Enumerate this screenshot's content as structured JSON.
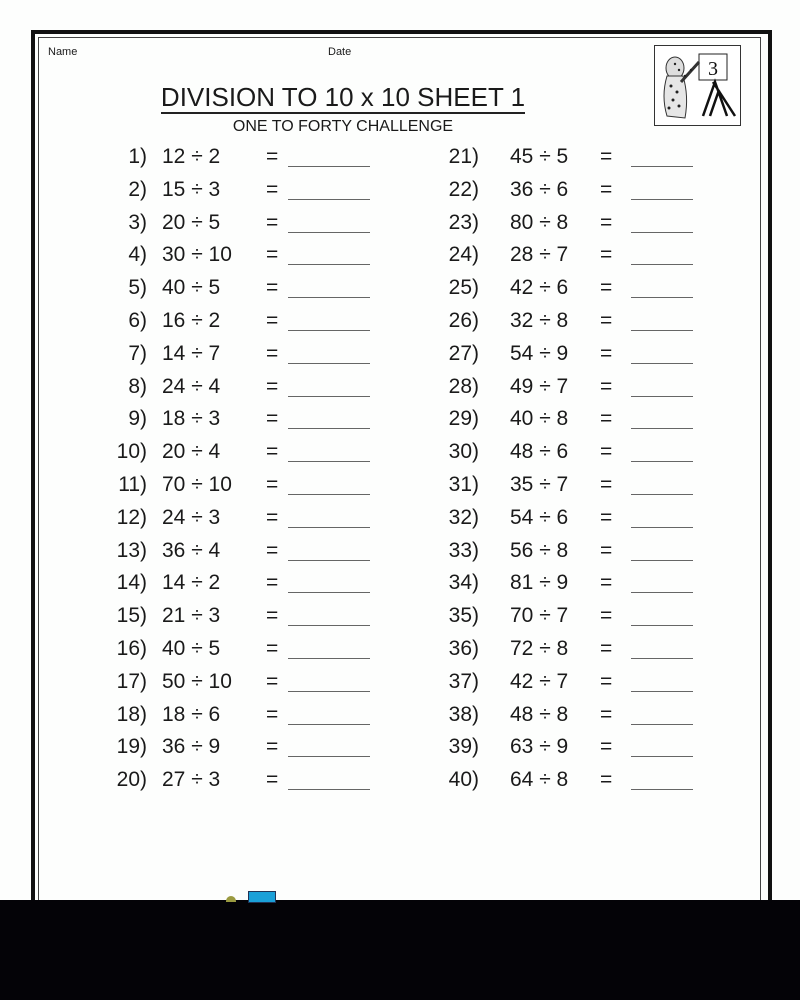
{
  "header": {
    "name_label": "Name",
    "date_label": "Date"
  },
  "title": "DIVISION TO 10 x 10 SHEET 1",
  "subtitle": "ONE TO FORTY CHALLENGE",
  "logo": {
    "grade": "3"
  },
  "problems": [
    {
      "n": "1)",
      "q": "12 ÷ 2"
    },
    {
      "n": "2)",
      "q": "15 ÷ 3"
    },
    {
      "n": "3)",
      "q": "20 ÷ 5"
    },
    {
      "n": "4)",
      "q": "30 ÷ 10"
    },
    {
      "n": "5)",
      "q": "40 ÷ 5"
    },
    {
      "n": "6)",
      "q": "16 ÷ 2"
    },
    {
      "n": "7)",
      "q": "14 ÷ 7"
    },
    {
      "n": "8)",
      "q": "24 ÷ 4"
    },
    {
      "n": "9)",
      "q": "18 ÷ 3"
    },
    {
      "n": "10)",
      "q": "20 ÷ 4"
    },
    {
      "n": "11)",
      "q": "70 ÷ 10"
    },
    {
      "n": "12)",
      "q": "24 ÷ 3"
    },
    {
      "n": "13)",
      "q": "36 ÷ 4"
    },
    {
      "n": "14)",
      "q": "14 ÷ 2"
    },
    {
      "n": "15)",
      "q": "21 ÷ 3"
    },
    {
      "n": "16)",
      "q": "40 ÷ 5"
    },
    {
      "n": "17)",
      "q": "50 ÷ 10"
    },
    {
      "n": "18)",
      "q": "18 ÷ 6"
    },
    {
      "n": "19)",
      "q": "36 ÷ 9"
    },
    {
      "n": "20)",
      "q": "27 ÷ 3"
    },
    {
      "n": "21)",
      "q": "45 ÷ 5"
    },
    {
      "n": "22)",
      "q": "36 ÷ 6"
    },
    {
      "n": "23)",
      "q": "80 ÷ 8"
    },
    {
      "n": "24)",
      "q": "28 ÷ 7"
    },
    {
      "n": "25)",
      "q": "42 ÷ 6"
    },
    {
      "n": "26)",
      "q": "32 ÷ 8"
    },
    {
      "n": "27)",
      "q": "54 ÷ 9"
    },
    {
      "n": "28)",
      "q": "49 ÷ 7"
    },
    {
      "n": "29)",
      "q": "40 ÷ 8"
    },
    {
      "n": "30)",
      "q": "48 ÷ 6"
    },
    {
      "n": "31)",
      "q": "35 ÷ 7"
    },
    {
      "n": "32)",
      "q": "54 ÷ 6"
    },
    {
      "n": "33)",
      "q": "56 ÷ 8"
    },
    {
      "n": "34)",
      "q": "81 ÷ 9"
    },
    {
      "n": "35)",
      "q": "70 ÷ 7"
    },
    {
      "n": "36)",
      "q": "72 ÷ 8"
    },
    {
      "n": "37)",
      "q": "42 ÷ 7"
    },
    {
      "n": "38)",
      "q": "48 ÷ 8"
    },
    {
      "n": "39)",
      "q": "63 ÷ 9"
    },
    {
      "n": "40)",
      "q": "64 ÷ 8"
    }
  ],
  "equals": "="
}
